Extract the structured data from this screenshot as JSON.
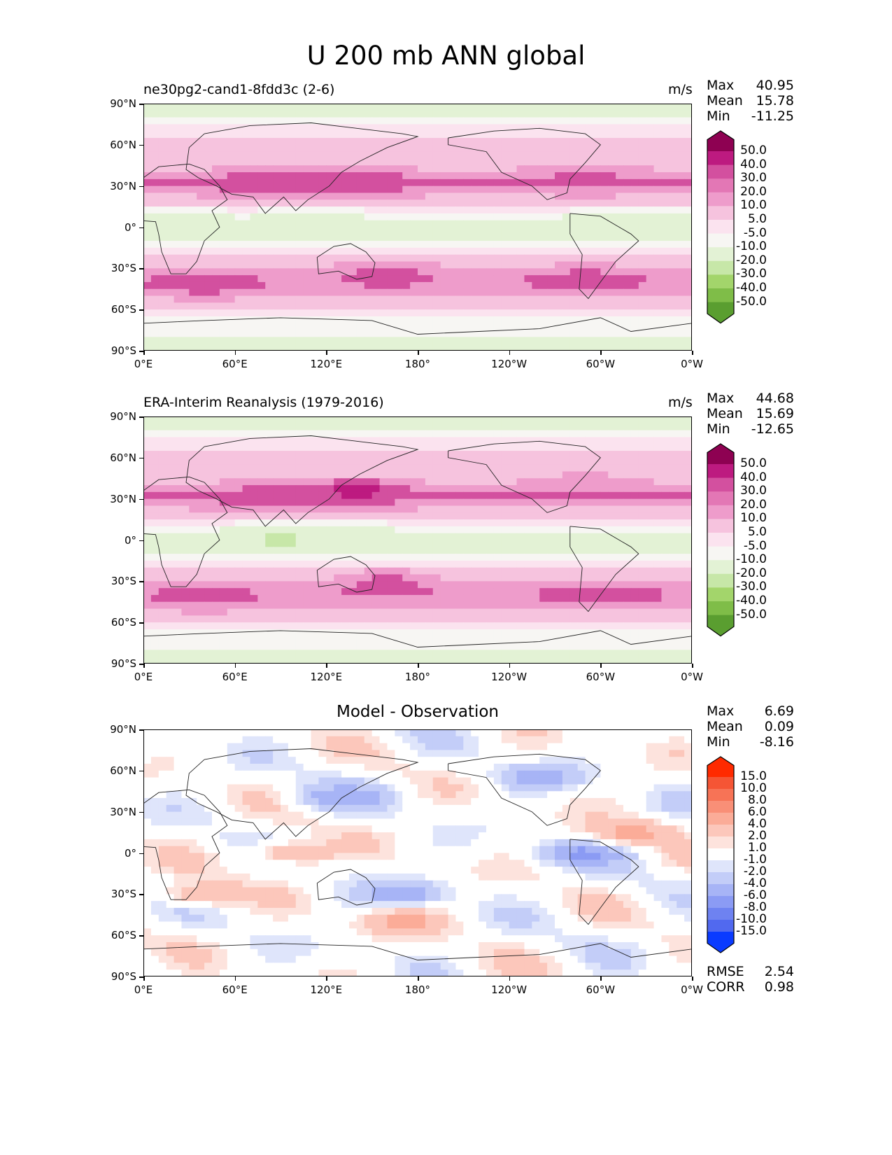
{
  "figure": {
    "title": "U 200 mb ANN global"
  },
  "colors": {
    "pink": [
      "#f7f6f3",
      "#fbe3ef",
      "#f6c3de",
      "#ee9ccb",
      "#e377b5",
      "#d3509f",
      "#bd1a80",
      "#8e0152"
    ],
    "green": [
      "#e3f2d5",
      "#c7e7a8",
      "#a3d56b",
      "#7fbd48",
      "#5a9e30",
      "#3b7a20",
      "#276419"
    ],
    "diff_pos": [
      "#ffffff",
      "#fde3dd",
      "#fcc7bb",
      "#fbac98",
      "#f98f77",
      "#f77356",
      "#f55535",
      "#ff2a00"
    ],
    "diff_neg": [
      "#ffffff",
      "#dfe5fb",
      "#c3cdf8",
      "#a7b4f6",
      "#8b9bf4",
      "#6e82f1",
      "#5169ef",
      "#0a3bff"
    ]
  },
  "chart_data": [
    {
      "type": "heatmap",
      "title": "ne30pg2-cand1-8fdd3c (2-6)",
      "units": "m/s",
      "stats": {
        "max_label": "Max",
        "max": "40.95",
        "mean_label": "Mean",
        "mean": "15.78",
        "min_label": "Min",
        "min": "-11.25"
      },
      "xticks": [
        "0°E",
        "60°E",
        "120°E",
        "180°",
        "120°W",
        "60°W",
        "0°W"
      ],
      "yticks": [
        "90°N",
        "60°N",
        "30°N",
        "0°",
        "30°S",
        "60°S",
        "90°S"
      ],
      "xlim": [
        0,
        360
      ],
      "ylim": [
        -90,
        90
      ],
      "colorbar_levels": [
        "50.0",
        "40.0",
        "30.0",
        "20.0",
        "10.0",
        "5.0",
        "-5.0",
        "-10.0",
        "-20.0",
        "-30.0",
        "-40.0",
        "-50.0"
      ],
      "features": [
        {
          "lon": 80,
          "lat": 32,
          "value": 38
        },
        {
          "lon": 140,
          "lat": 34,
          "value": 40
        },
        {
          "lon": 290,
          "lat": 38,
          "value": 32
        },
        {
          "lon": 160,
          "lat": -32,
          "value": 33
        },
        {
          "lon": 290,
          "lat": -38,
          "value": 34
        },
        {
          "lon": 40,
          "lat": -42,
          "value": 34
        },
        {
          "lon": 20,
          "lat": 0,
          "value": -10
        },
        {
          "lon": 110,
          "lat": 2,
          "value": -6
        },
        {
          "lon": 310,
          "lat": 0,
          "value": -6
        }
      ]
    },
    {
      "type": "heatmap",
      "title": "ERA-Interim Reanalysis (1979-2016)",
      "units": "m/s",
      "stats": {
        "max_label": "Max",
        "max": "44.68",
        "mean_label": "Mean",
        "mean": "15.69",
        "min_label": "Min",
        "min": "-12.65"
      },
      "xticks": [
        "0°E",
        "60°E",
        "120°E",
        "180°",
        "120°W",
        "60°W",
        "0°W"
      ],
      "yticks": [
        "90°N",
        "60°N",
        "30°N",
        "0°",
        "30°S",
        "60°S",
        "90°S"
      ],
      "xlim": [
        0,
        360
      ],
      "ylim": [
        -90,
        90
      ],
      "colorbar_levels": [
        "50.0",
        "40.0",
        "30.0",
        "20.0",
        "10.0",
        "5.0",
        "-5.0",
        "-10.0",
        "-20.0",
        "-30.0",
        "-40.0",
        "-50.0"
      ],
      "features": [
        {
          "lon": 80,
          "lat": 30,
          "value": 36
        },
        {
          "lon": 140,
          "lat": 36,
          "value": 44
        },
        {
          "lon": 290,
          "lat": 40,
          "value": 30
        },
        {
          "lon": 160,
          "lat": -30,
          "value": 34
        },
        {
          "lon": 300,
          "lat": -40,
          "value": 34
        },
        {
          "lon": 40,
          "lat": -42,
          "value": 32
        },
        {
          "lon": 90,
          "lat": 0,
          "value": -12
        },
        {
          "lon": 130,
          "lat": 0,
          "value": -8
        }
      ]
    },
    {
      "type": "heatmap",
      "title": "Model - Observation",
      "units": "",
      "stats": {
        "max_label": "Max",
        "max": "6.69",
        "mean_label": "Mean",
        "mean": "0.09",
        "min_label": "Min",
        "min": "-8.16"
      },
      "extra_stats": {
        "rmse_label": "RMSE",
        "rmse": "2.54",
        "corr_label": "CORR",
        "corr": "0.98"
      },
      "xticks": [
        "0°E",
        "60°E",
        "120°E",
        "180°",
        "120°W",
        "60°W",
        "0°W"
      ],
      "yticks": [
        "90°N",
        "60°N",
        "30°N",
        "0°",
        "30°S",
        "60°S",
        "90°S"
      ],
      "xlim": [
        0,
        360
      ],
      "ylim": [
        -90,
        90
      ],
      "colorbar_levels": [
        "15.0",
        "10.0",
        "8.0",
        "6.0",
        "4.0",
        "2.0",
        "1.0",
        "-1.0",
        "-2.0",
        "-4.0",
        "-6.0",
        "-8.0",
        "-10.0",
        "-15.0"
      ],
      "features": [
        {
          "lon": 130,
          "lat": 40,
          "value": -6
        },
        {
          "lon": 260,
          "lat": 55,
          "value": -5
        },
        {
          "lon": 290,
          "lat": 0,
          "value": -7
        },
        {
          "lon": 170,
          "lat": -30,
          "value": -6
        },
        {
          "lon": 100,
          "lat": 0,
          "value": 4
        },
        {
          "lon": 170,
          "lat": -50,
          "value": 5
        },
        {
          "lon": 40,
          "lat": -30,
          "value": 4
        },
        {
          "lon": 320,
          "lat": 15,
          "value": 5
        }
      ]
    }
  ]
}
